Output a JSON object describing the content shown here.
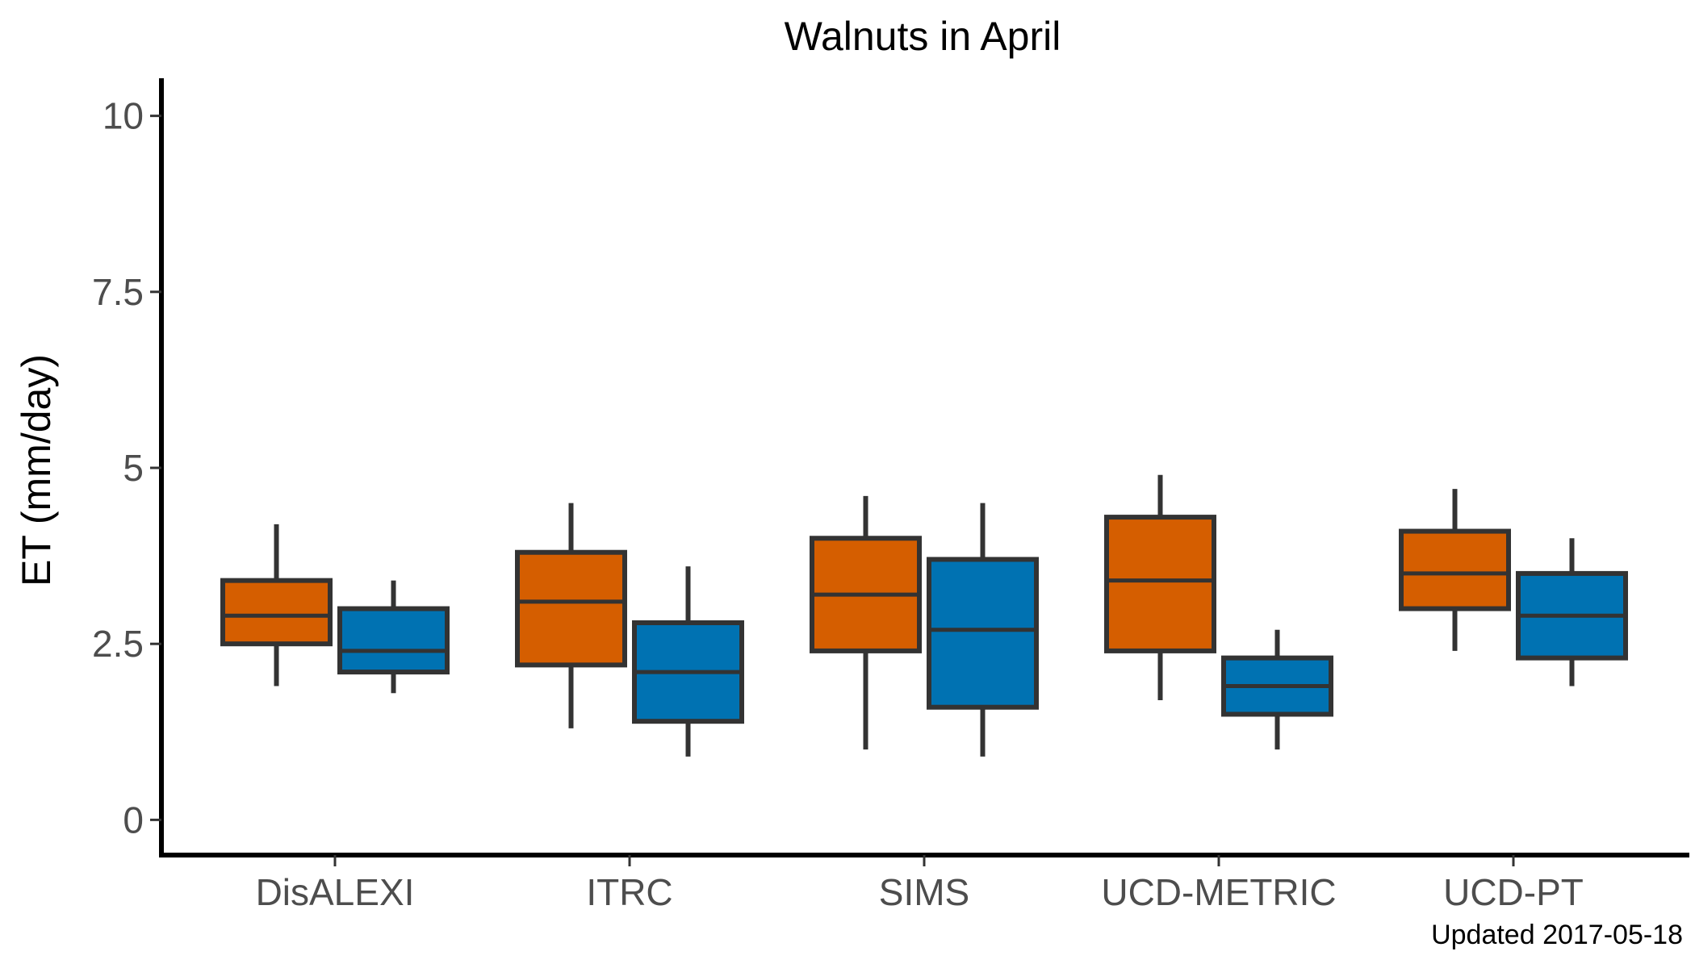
{
  "chart_data": {
    "type": "boxplot",
    "title": "Walnuts in April",
    "xlabel": "",
    "ylabel": "ET (mm/day)",
    "ylim": [
      -0.5,
      10.5
    ],
    "yticks": [
      0,
      2.5,
      5,
      7.5,
      10
    ],
    "ytick_labels": [
      "0",
      "2.5",
      "5",
      "7.5",
      "10"
    ],
    "categories": [
      "DisALEXI",
      "ITRC",
      "SIMS",
      "UCD-METRIC",
      "UCD-PT"
    ],
    "legend": "none",
    "grid": false,
    "series": [
      {
        "color": "#D55E00",
        "boxes": [
          {
            "min": 1.9,
            "q1": 2.5,
            "median": 2.9,
            "q3": 3.4,
            "max": 4.2
          },
          {
            "min": 1.3,
            "q1": 2.2,
            "median": 3.1,
            "q3": 3.8,
            "max": 4.5
          },
          {
            "min": 1.0,
            "q1": 2.4,
            "median": 3.2,
            "q3": 4.0,
            "max": 4.6
          },
          {
            "min": 1.7,
            "q1": 2.4,
            "median": 3.4,
            "q3": 4.3,
            "max": 4.9
          },
          {
            "min": 2.4,
            "q1": 3.0,
            "median": 3.5,
            "q3": 4.1,
            "max": 4.7
          }
        ]
      },
      {
        "color": "#0072B2",
        "boxes": [
          {
            "min": 1.8,
            "q1": 2.1,
            "median": 2.4,
            "q3": 3.0,
            "max": 3.4
          },
          {
            "min": 0.9,
            "q1": 1.4,
            "median": 2.1,
            "q3": 2.8,
            "max": 3.6
          },
          {
            "min": 0.9,
            "q1": 1.6,
            "median": 2.7,
            "q3": 3.7,
            "max": 4.5
          },
          {
            "min": 1.0,
            "q1": 1.5,
            "median": 1.9,
            "q3": 2.3,
            "max": 2.7
          },
          {
            "min": 1.9,
            "q1": 2.3,
            "median": 2.9,
            "q3": 3.5,
            "max": 4.0
          }
        ]
      }
    ],
    "caption": "Updated  2017-05-18"
  }
}
